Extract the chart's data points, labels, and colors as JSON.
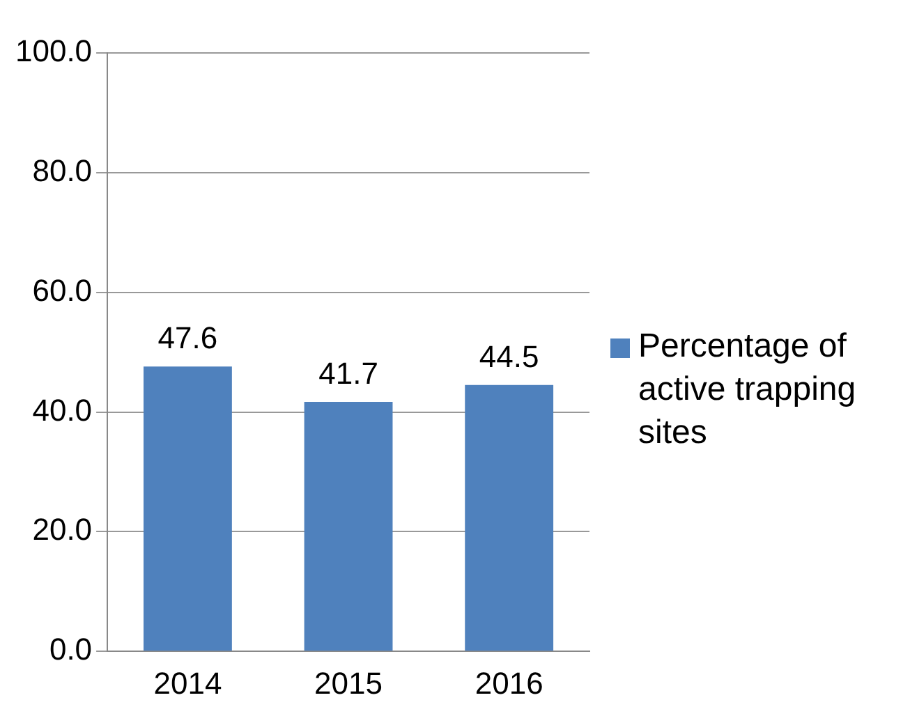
{
  "chart_data": {
    "type": "bar",
    "categories": [
      "2014",
      "2015",
      "2016"
    ],
    "series": [
      {
        "name": "Percentage of active trapping sites",
        "color": "#4f81bd",
        "values": [
          47.6,
          41.7,
          44.5
        ]
      }
    ],
    "ylim": [
      0,
      100
    ],
    "yticks": [
      {
        "value": 0,
        "label": "0.0"
      },
      {
        "value": 20,
        "label": "20.0"
      },
      {
        "value": 40,
        "label": "40.0"
      },
      {
        "value": 60,
        "label": "60.0"
      },
      {
        "value": 80,
        "label": "80.0"
      },
      {
        "value": 100,
        "label": "100.0"
      }
    ],
    "grid": "y",
    "legend": "right",
    "data_labels": true
  }
}
